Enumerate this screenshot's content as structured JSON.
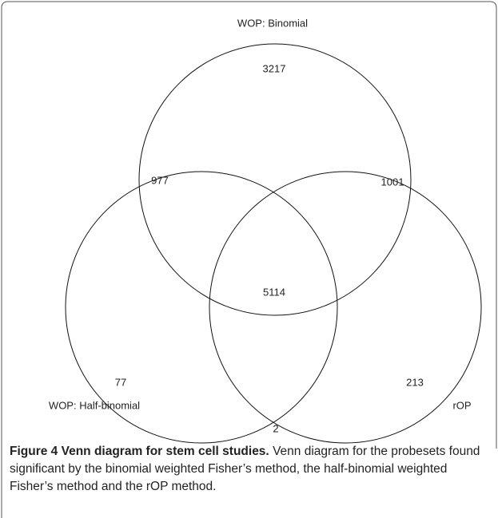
{
  "figure": {
    "sets": [
      "WOP: Binomial",
      "WOP: Half-binomial",
      "rOP"
    ],
    "regions": [
      {
        "name": "binomial-only",
        "value": 3217
      },
      {
        "name": "binomial-half",
        "value": 977
      },
      {
        "name": "binomial-rop",
        "value": 1001
      },
      {
        "name": "all",
        "value": 5114
      },
      {
        "name": "half-only",
        "value": 77
      },
      {
        "name": "rop-only",
        "value": 213
      },
      {
        "name": "half-rop",
        "value": 2
      }
    ],
    "caption": {
      "label": "Figure 4 Venn diagram for stem cell studies.",
      "text": "Venn diagram for the probesets found significant by the binomial weighted Fisher’s method, the half-binomial weighted Fisher’s method and the rOP method."
    }
  }
}
